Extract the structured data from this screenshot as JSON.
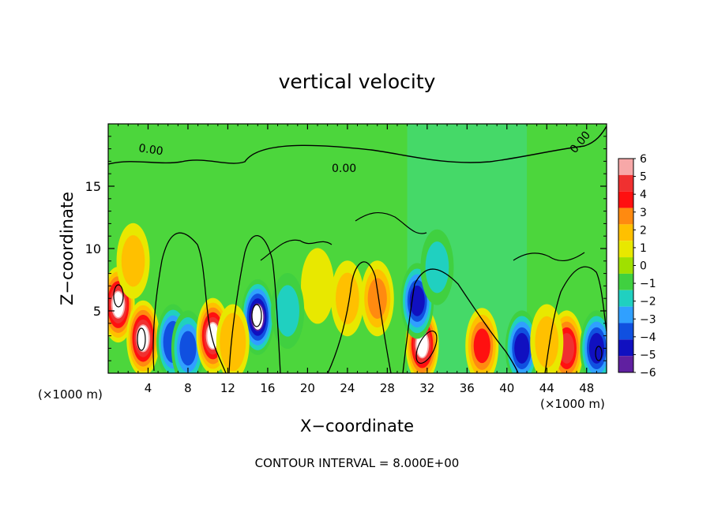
{
  "chart_data": {
    "type": "heatmap",
    "title": "vertical velocity",
    "xlabel": "X−coordinate",
    "ylabel": "Z−coordinate",
    "x_unit_left": "(×1000 m)",
    "x_unit_right": "(×1000 m)",
    "footer": "CONTOUR INTERVAL = 8.000E+00",
    "xlim": [
      0,
      50
    ],
    "ylim": [
      0,
      20
    ],
    "x_ticks": [
      4,
      8,
      12,
      16,
      20,
      24,
      28,
      32,
      36,
      40,
      44,
      48
    ],
    "y_ticks": [
      5,
      10,
      15
    ],
    "contour_labels": [
      "0.00",
      "0.00",
      "0.00"
    ],
    "colorbar": {
      "min": -6,
      "max": 6,
      "labels": [
        "6",
        "5",
        "4",
        "3",
        "2",
        "1",
        "0",
        "−1",
        "−2",
        "−3",
        "−4",
        "−5",
        "−6"
      ],
      "colors": [
        "#f7a8a8",
        "#f03030",
        "#ff1010",
        "#ff8a10",
        "#ffc000",
        "#e8e800",
        "#a0e000",
        "#40d040",
        "#20d0c0",
        "#30a0ff",
        "#1050e0",
        "#1010c0",
        "#6020a0"
      ]
    },
    "features": [
      {
        "x": 1.0,
        "z": 5.5,
        "w": 5.8
      },
      {
        "x": 3.5,
        "z": 2.8,
        "w": 5.8
      },
      {
        "x": 6.5,
        "z": 2.5,
        "w": -4.2
      },
      {
        "x": 8.0,
        "z": 2.0,
        "w": -3.5
      },
      {
        "x": 10.5,
        "z": 3.0,
        "w": 5.6
      },
      {
        "x": 15.0,
        "z": 4.5,
        "w": -5.8
      },
      {
        "x": 12.5,
        "z": 2.5,
        "w": 2.5
      },
      {
        "x": 2.5,
        "z": 9.0,
        "w": 1.8
      },
      {
        "x": 31.5,
        "z": 2.3,
        "w": 5.8
      },
      {
        "x": 31.0,
        "z": 5.8,
        "w": -4.5
      },
      {
        "x": 33.0,
        "z": 8.5,
        "w": -2.0
      },
      {
        "x": 37.5,
        "z": 2.2,
        "w": 3.8
      },
      {
        "x": 41.5,
        "z": 2.0,
        "w": -4.5
      },
      {
        "x": 46.0,
        "z": 2.0,
        "w": 4.8
      },
      {
        "x": 49.0,
        "z": 2.0,
        "w": -5.0
      },
      {
        "x": 27.0,
        "z": 6.0,
        "w": 3.0
      },
      {
        "x": 24.0,
        "z": 6.0,
        "w": 2.0
      },
      {
        "x": 21.0,
        "z": 7.0,
        "w": 1.5
      },
      {
        "x": 18.0,
        "z": 5.0,
        "w": -1.5
      },
      {
        "x": 44.0,
        "z": 2.5,
        "w": 2.0
      }
    ]
  }
}
